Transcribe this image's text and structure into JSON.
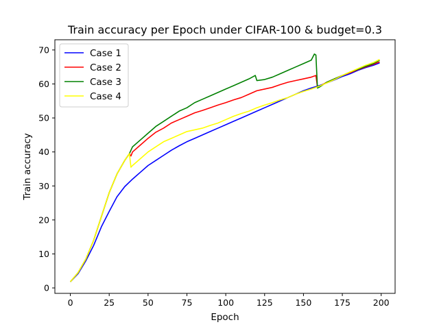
{
  "chart_data": {
    "type": "line",
    "title": "Train accuracy per Epoch under CIFAR-100 & budget=0.3",
    "xlabel": "Epoch",
    "ylabel": "Train accuracy",
    "xlim": [
      -9.95,
      208.95
    ],
    "ylim": [
      -1.6,
      73.0
    ],
    "xticks": [
      0,
      25,
      50,
      75,
      100,
      125,
      150,
      175,
      200
    ],
    "yticks": [
      0,
      10,
      20,
      30,
      40,
      50,
      60,
      70
    ],
    "grid": false,
    "legend_position": "upper-left",
    "series": [
      {
        "name": "Case 1",
        "color": "#0000ff",
        "points": [
          [
            0,
            1.8
          ],
          [
            5,
            4.2
          ],
          [
            10,
            8.0
          ],
          [
            15,
            12.5
          ],
          [
            20,
            18.0
          ],
          [
            25,
            22.5
          ],
          [
            30,
            26.8
          ],
          [
            35,
            29.8
          ],
          [
            40,
            32.0
          ],
          [
            45,
            34.0
          ],
          [
            50,
            36.0
          ],
          [
            55,
            37.5
          ],
          [
            60,
            39.0
          ],
          [
            65,
            40.5
          ],
          [
            70,
            41.8
          ],
          [
            75,
            43.0
          ],
          [
            80,
            44.0
          ],
          [
            85,
            45.0
          ],
          [
            90,
            46.0
          ],
          [
            95,
            47.0
          ],
          [
            100,
            48.0
          ],
          [
            105,
            49.0
          ],
          [
            110,
            50.0
          ],
          [
            115,
            51.0
          ],
          [
            120,
            52.0
          ],
          [
            125,
            53.0
          ],
          [
            130,
            54.0
          ],
          [
            135,
            55.0
          ],
          [
            140,
            56.0
          ],
          [
            145,
            57.0
          ],
          [
            150,
            58.0
          ],
          [
            155,
            58.8
          ],
          [
            160,
            59.5
          ],
          [
            165,
            60.3
          ],
          [
            170,
            61.2
          ],
          [
            175,
            62.2
          ],
          [
            180,
            63.0
          ],
          [
            185,
            64.0
          ],
          [
            190,
            64.8
          ],
          [
            195,
            65.5
          ],
          [
            199,
            66.2
          ]
        ]
      },
      {
        "name": "Case 2",
        "color": "#ff0000",
        "points": [
          [
            0,
            1.8
          ],
          [
            5,
            4.5
          ],
          [
            10,
            8.5
          ],
          [
            15,
            14.0
          ],
          [
            20,
            21.0
          ],
          [
            25,
            28.0
          ],
          [
            30,
            33.5
          ],
          [
            35,
            37.5
          ],
          [
            38,
            39.5
          ],
          [
            39,
            38.8
          ],
          [
            40,
            40.0
          ],
          [
            45,
            42.0
          ],
          [
            50,
            44.0
          ],
          [
            55,
            45.8
          ],
          [
            60,
            47.0
          ],
          [
            65,
            48.5
          ],
          [
            70,
            49.5
          ],
          [
            75,
            50.5
          ],
          [
            80,
            51.5
          ],
          [
            85,
            52.2
          ],
          [
            90,
            53.0
          ],
          [
            95,
            53.8
          ],
          [
            100,
            54.5
          ],
          [
            105,
            55.3
          ],
          [
            110,
            56.0
          ],
          [
            115,
            57.0
          ],
          [
            120,
            58.0
          ],
          [
            125,
            58.5
          ],
          [
            130,
            59.0
          ],
          [
            135,
            59.8
          ],
          [
            140,
            60.5
          ],
          [
            145,
            61.0
          ],
          [
            150,
            61.5
          ],
          [
            155,
            62.0
          ],
          [
            158,
            62.5
          ],
          [
            159,
            59.0
          ],
          [
            160,
            59.2
          ],
          [
            165,
            60.5
          ],
          [
            170,
            61.5
          ],
          [
            175,
            62.5
          ],
          [
            180,
            63.3
          ],
          [
            185,
            64.2
          ],
          [
            190,
            65.0
          ],
          [
            195,
            65.8
          ],
          [
            199,
            66.5
          ]
        ]
      },
      {
        "name": "Case 3",
        "color": "#008000",
        "points": [
          [
            0,
            1.8
          ],
          [
            5,
            4.5
          ],
          [
            10,
            8.5
          ],
          [
            15,
            14.0
          ],
          [
            20,
            21.0
          ],
          [
            25,
            28.0
          ],
          [
            30,
            33.5
          ],
          [
            35,
            37.5
          ],
          [
            38,
            39.5
          ],
          [
            40,
            41.5
          ],
          [
            45,
            43.5
          ],
          [
            50,
            45.5
          ],
          [
            55,
            47.5
          ],
          [
            60,
            49.0
          ],
          [
            65,
            50.5
          ],
          [
            70,
            52.0
          ],
          [
            75,
            53.0
          ],
          [
            80,
            54.5
          ],
          [
            85,
            55.5
          ],
          [
            90,
            56.5
          ],
          [
            95,
            57.5
          ],
          [
            100,
            58.5
          ],
          [
            105,
            59.5
          ],
          [
            110,
            60.5
          ],
          [
            115,
            61.5
          ],
          [
            119,
            62.5
          ],
          [
            120,
            61.0
          ],
          [
            125,
            61.3
          ],
          [
            130,
            62.0
          ],
          [
            135,
            63.0
          ],
          [
            140,
            64.0
          ],
          [
            145,
            65.0
          ],
          [
            150,
            66.0
          ],
          [
            155,
            67.0
          ],
          [
            157,
            68.8
          ],
          [
            158,
            68.5
          ],
          [
            159,
            58.8
          ],
          [
            160,
            59.0
          ],
          [
            165,
            60.5
          ],
          [
            170,
            61.5
          ],
          [
            175,
            62.5
          ],
          [
            180,
            63.5
          ],
          [
            185,
            64.3
          ],
          [
            190,
            65.2
          ],
          [
            195,
            66.0
          ],
          [
            199,
            67.0
          ]
        ]
      },
      {
        "name": "Case 4",
        "color": "#ffff00",
        "points": [
          [
            0,
            1.8
          ],
          [
            5,
            4.5
          ],
          [
            10,
            8.5
          ],
          [
            15,
            14.0
          ],
          [
            20,
            21.0
          ],
          [
            25,
            28.0
          ],
          [
            30,
            33.5
          ],
          [
            35,
            37.5
          ],
          [
            38,
            39.5
          ],
          [
            39,
            35.5
          ],
          [
            40,
            36.0
          ],
          [
            45,
            38.0
          ],
          [
            50,
            40.0
          ],
          [
            55,
            41.5
          ],
          [
            60,
            43.0
          ],
          [
            65,
            44.0
          ],
          [
            70,
            45.0
          ],
          [
            75,
            46.0
          ],
          [
            80,
            46.5
          ],
          [
            85,
            47.0
          ],
          [
            90,
            47.8
          ],
          [
            95,
            48.5
          ],
          [
            100,
            49.5
          ],
          [
            105,
            50.5
          ],
          [
            110,
            51.3
          ],
          [
            115,
            52.0
          ],
          [
            120,
            53.0
          ],
          [
            125,
            53.8
          ],
          [
            130,
            54.5
          ],
          [
            135,
            55.3
          ],
          [
            140,
            56.0
          ],
          [
            145,
            57.0
          ],
          [
            150,
            57.8
          ],
          [
            155,
            58.5
          ],
          [
            160,
            59.3
          ],
          [
            165,
            60.3
          ],
          [
            170,
            61.3
          ],
          [
            175,
            62.5
          ],
          [
            180,
            63.5
          ],
          [
            185,
            64.5
          ],
          [
            190,
            65.5
          ],
          [
            195,
            66.3
          ],
          [
            199,
            67.2
          ]
        ]
      }
    ]
  }
}
